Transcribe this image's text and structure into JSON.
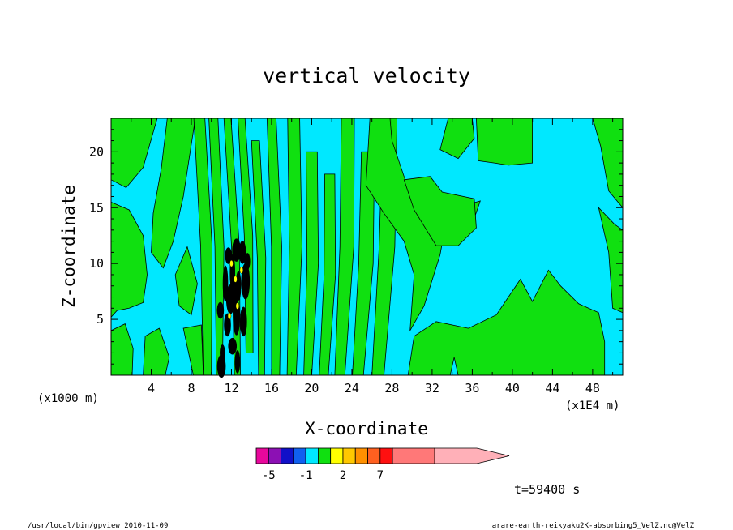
{
  "chart_data": {
    "type": "heatmap",
    "title": "vertical velocity",
    "xlabel": "X-coordinate",
    "ylabel": "Z-coordinate",
    "x_unit_label": "(x1E4 m)",
    "y_unit_label": "(x1000 m)",
    "xlim": [
      0,
      51
    ],
    "ylim": [
      0,
      23
    ],
    "x_ticks": [
      4,
      8,
      12,
      16,
      20,
      24,
      28,
      32,
      36,
      40,
      44,
      48
    ],
    "y_ticks": [
      5,
      10,
      15,
      20
    ],
    "colorbar": {
      "colors": [
        "#e8089c",
        "#8c10b4",
        "#1010c8",
        "#1060f0",
        "#00e8ff",
        "#10e010",
        "#ffff00",
        "#ffc800",
        "#ff9000",
        "#ff6020",
        "#ff1010",
        "#ff7878",
        "#ffb0b8"
      ],
      "labels": [
        "-5",
        "-1",
        "2",
        "7"
      ],
      "label_positions": [
        -5,
        -1,
        2,
        7
      ],
      "bounds": [
        -7,
        -5,
        -3,
        -2,
        -1,
        0,
        1,
        2,
        3,
        5,
        7,
        10,
        15,
        20
      ]
    },
    "field_colors": {
      "negative": "#00e8ff",
      "positive": "#10e010",
      "strong_positive": "#ffff00",
      "strong_negative": "#000000"
    },
    "fields_note": "",
    "time_label": "t=59400 s"
  },
  "footer": {
    "left": "/usr/local/bin/gpview  2010-11-09",
    "right": "arare-earth-reikyaku2K-absorbing5_VelZ.nc@VelZ"
  }
}
